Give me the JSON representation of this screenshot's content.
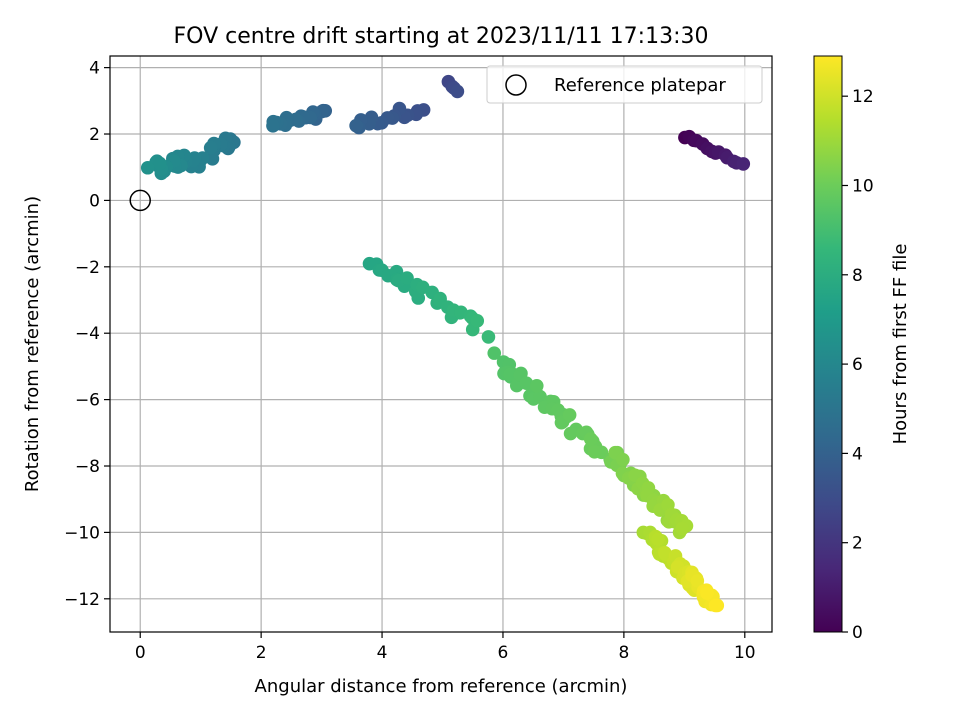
{
  "chart_data": {
    "type": "scatter",
    "title": "FOV centre drift starting at 2023/11/11 17:13:30",
    "xlabel": "Angular distance from reference (arcmin)",
    "ylabel": "Rotation from reference (arcmin)",
    "xlim": [
      -0.5,
      10.45
    ],
    "ylim": [
      -13.0,
      4.35
    ],
    "xticks": [
      "0",
      "2",
      "4",
      "6",
      "8",
      "10"
    ],
    "yticks": [
      "−12",
      "−10",
      "−8",
      "−6",
      "−4",
      "−2",
      "0",
      "2",
      "4"
    ],
    "grid": true,
    "legend_position": "top-right",
    "colormap": "viridis",
    "colorbar": {
      "label": "Hours from first FF file",
      "range": [
        0,
        12.9
      ],
      "ticks": [
        "0",
        "2",
        "4",
        "6",
        "8",
        "10",
        "12"
      ]
    },
    "reference": {
      "name": "Reference platepar",
      "x": 0,
      "y": 0
    },
    "clusters": [
      {
        "x_range": [
          9.0,
          9.95
        ],
        "y_range": [
          1.0,
          2.0
        ],
        "t_range": [
          0.0,
          1.3
        ],
        "n": 14,
        "slope": -0.9,
        "spread": 0.06
      },
      {
        "x_range": [
          5.1,
          5.25
        ],
        "y_range": [
          3.25,
          3.6
        ],
        "t_range": [
          2.7,
          3.0
        ],
        "n": 4,
        "slope": -2.0,
        "spread": 0.03
      },
      {
        "x_range": [
          3.5,
          4.7
        ],
        "y_range": [
          2.0,
          3.05
        ],
        "t_range": [
          3.1,
          4.0
        ],
        "n": 16,
        "slope": 0.5,
        "spread": 0.15
      },
      {
        "x_range": [
          2.15,
          3.1
        ],
        "y_range": [
          1.95,
          2.9
        ],
        "t_range": [
          4.0,
          4.9
        ],
        "n": 22,
        "slope": 0.4,
        "spread": 0.15
      },
      {
        "x_range": [
          1.05,
          1.6
        ],
        "y_range": [
          1.05,
          2.15
        ],
        "t_range": [
          5.0,
          5.6
        ],
        "n": 16,
        "slope": 1.0,
        "spread": 0.2
      },
      {
        "x_range": [
          0.2,
          0.95
        ],
        "y_range": [
          0.7,
          1.5
        ],
        "t_range": [
          5.6,
          6.5
        ],
        "n": 26,
        "slope": 0.3,
        "spread": 0.2
      },
      {
        "x_range": [
          3.8,
          5.7
        ],
        "y_range": [
          -4.3,
          -1.5
        ],
        "t_range": [
          7.6,
          8.7
        ],
        "n": 28,
        "slope": -1.1,
        "spread": 0.2
      },
      {
        "x_range": [
          5.9,
          7.65
        ],
        "y_range": [
          -7.8,
          -4.6
        ],
        "t_range": [
          9.3,
          10.0
        ],
        "n": 44,
        "slope": -1.6,
        "spread": 0.25
      },
      {
        "x_range": [
          7.8,
          9.0
        ],
        "y_range": [
          -10.0,
          -7.6
        ],
        "t_range": [
          10.2,
          11.2
        ],
        "n": 42,
        "slope": -1.9,
        "spread": 0.25
      },
      {
        "x_range": [
          8.4,
          9.5
        ],
        "y_range": [
          -12.2,
          -10.0
        ],
        "t_range": [
          11.2,
          12.9
        ],
        "n": 60,
        "slope": -1.9,
        "spread": 0.22
      }
    ]
  }
}
